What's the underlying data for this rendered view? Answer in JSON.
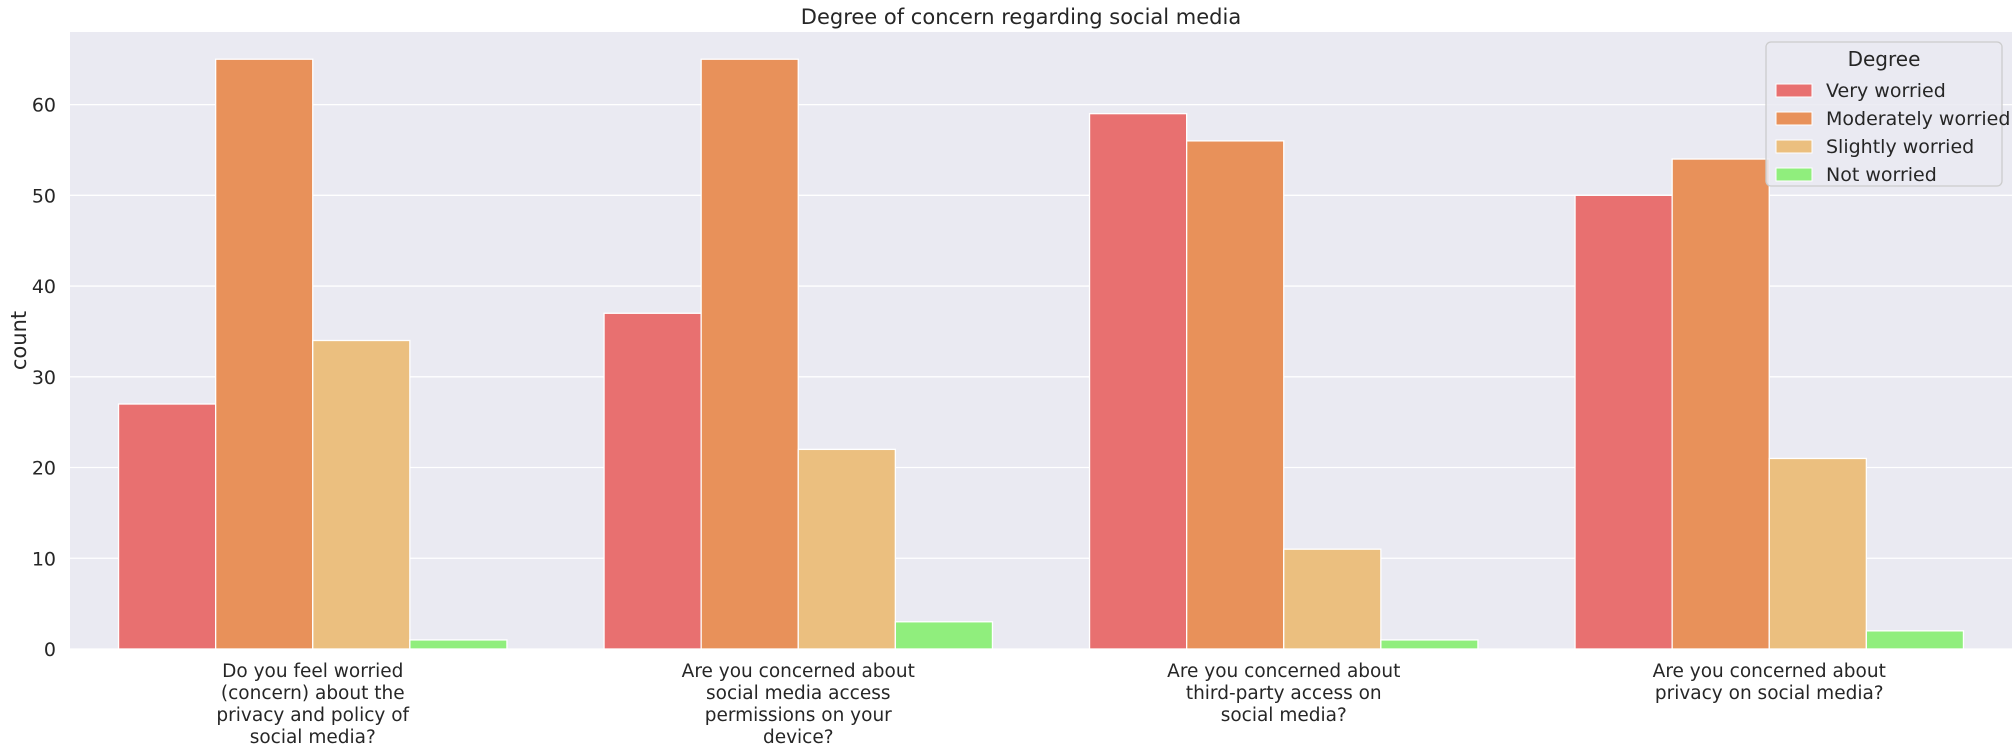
{
  "chart_data": {
    "type": "bar",
    "title": "Degree of concern regarding social media",
    "xlabel": "",
    "ylabel": "count",
    "ylim": [
      0,
      68
    ],
    "yticks": [
      0,
      10,
      20,
      30,
      40,
      50,
      60
    ],
    "grid": true,
    "categories": [
      [
        "Do you feel worried",
        "(concern) about the",
        "privacy and policy of",
        "social media?"
      ],
      [
        "Are you concerned about",
        "social media access",
        "permissions on your",
        "device?"
      ],
      [
        "Are you concerned about",
        "third-party access on",
        "social media?"
      ],
      [
        "Are you concerned about",
        "privacy on social media?"
      ]
    ],
    "legend": {
      "title": "Degree",
      "position": "top-right"
    },
    "series": [
      {
        "name": "Very worried",
        "color": "#e87070",
        "values": [
          27,
          37,
          59,
          50
        ]
      },
      {
        "name": "Moderately worried",
        "color": "#e8915a",
        "values": [
          65,
          65,
          56,
          54
        ]
      },
      {
        "name": "Slightly worried",
        "color": "#ebbf7f",
        "values": [
          34,
          22,
          11,
          21
        ]
      },
      {
        "name": "Not worried",
        "color": "#90ee7d",
        "values": [
          1,
          3,
          1,
          2
        ]
      }
    ],
    "background_color": "#eaeaf2",
    "grid_color": "#ffffff"
  }
}
